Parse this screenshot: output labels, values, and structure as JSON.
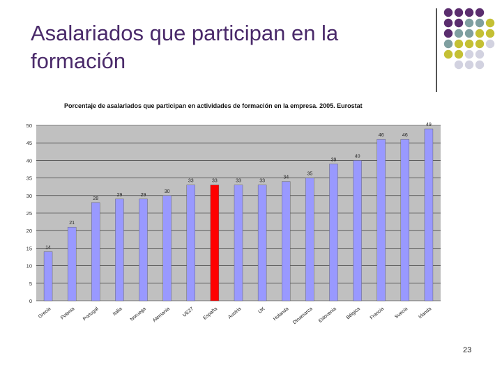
{
  "slide": {
    "title_line1": "Asalariados que participan en la",
    "title_line2": "formación",
    "page_number": "23"
  },
  "colors": {
    "title": "#4a2a6a",
    "plot_bg": "#c0c0c0",
    "bar": "#9999ff",
    "highlight_bar": "#ff0000",
    "dot_purple": "#5a2d6e",
    "dot_teal": "#7f9fa0",
    "dot_olive": "#c4c034",
    "dot_lavender": "#d2d2e0"
  },
  "decoration": {
    "dot_grid": [
      [
        "purple",
        "purple",
        "purple",
        "purple"
      ],
      [
        "purple",
        "purple",
        "teal",
        "teal",
        "olive"
      ],
      [
        "purple",
        "teal",
        "teal",
        "olive",
        "olive"
      ],
      [
        "teal",
        "olive",
        "olive",
        "olive",
        "lavender"
      ],
      [
        "olive",
        "olive",
        "lavender",
        "lavender"
      ],
      [
        "lavender",
        "lavender",
        "lavender"
      ]
    ]
  },
  "chart_data": {
    "type": "bar",
    "title": "Porcentaje de asalariados que participan en actividades de formación en la empresa. 2005. Eurostat",
    "categories": [
      "Grecia",
      "Polonia",
      "Portugal",
      "Italia",
      "Noruega",
      "Alemania",
      "UE27",
      "España",
      "Austria",
      "UK",
      "Holanda",
      "Dinamarca",
      "Eslovenia",
      "Bélgica",
      "Francia",
      "Suecia",
      "Irlanda"
    ],
    "values": [
      14,
      21,
      28,
      29,
      29,
      30,
      33,
      33,
      33,
      33,
      34,
      35,
      39,
      40,
      46,
      46,
      49
    ],
    "value_labels": [
      "14",
      "21",
      "28",
      "29",
      "29",
      "30",
      "33",
      "33",
      "33",
      "33",
      "34",
      "35",
      "39",
      "40",
      "46",
      "46",
      "49"
    ],
    "highlight_category": "España",
    "ylim": [
      0,
      50
    ],
    "yticks": [
      "0",
      "5",
      "10",
      "15",
      "20",
      "25",
      "30",
      "35",
      "40",
      "45",
      "50"
    ],
    "grid": true,
    "xlabel": "",
    "ylabel": ""
  }
}
